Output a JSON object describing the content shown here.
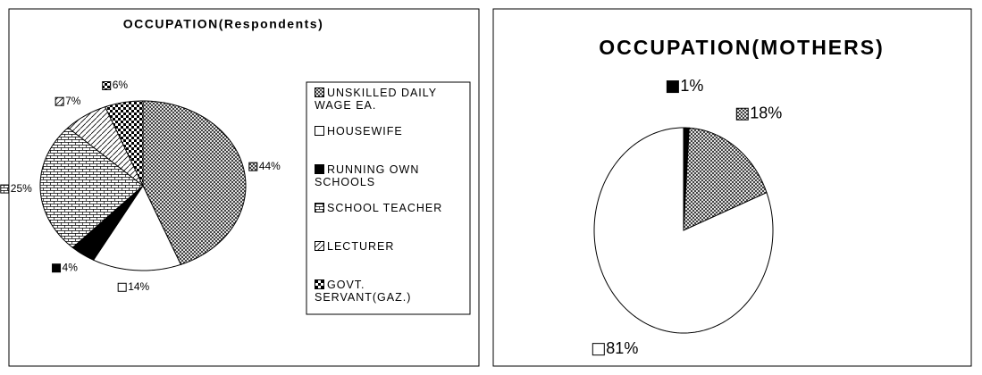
{
  "chart_data": [
    {
      "type": "pie",
      "title": "OCCUPATION(Respondents)",
      "categories": [
        "UNSKILLED DAILY WAGE EA.",
        "HOUSEWIFE",
        "RUNNING OWN SCHOOLS",
        "SCHOOL TEACHER",
        "LECTURER",
        "GOVT. SERVANT(GAZ.)"
      ],
      "values": [
        44,
        14,
        4,
        25,
        7,
        6
      ],
      "value_labels": [
        "44%",
        "14%",
        "4%",
        "25%",
        "7%",
        "6%"
      ]
    },
    {
      "type": "pie",
      "title": "OCCUPATION(MOTHERS)",
      "values": [
        1,
        18,
        81
      ],
      "value_labels": [
        "1%",
        "18%",
        "81%"
      ]
    }
  ]
}
